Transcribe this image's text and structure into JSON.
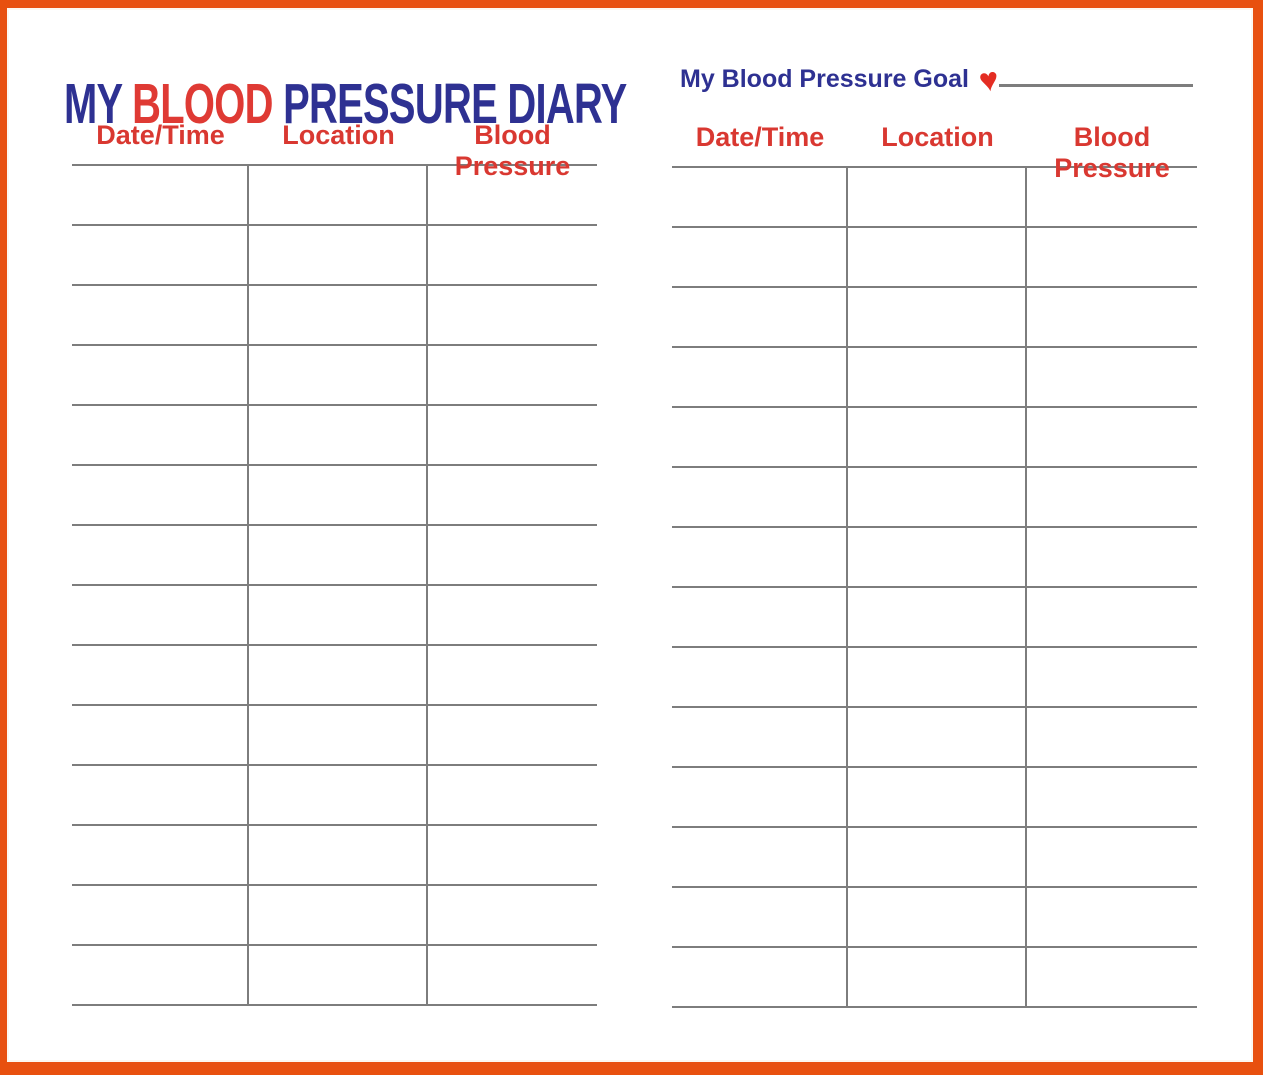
{
  "page": {
    "title_parts": {
      "my": "MY ",
      "blood": "BLOOD",
      "rest": " PRESSURE DIARY"
    },
    "goal_label": "My Blood Pressure Goal",
    "goal_value": "",
    "heart_icon": "♥"
  },
  "colors": {
    "frame_orange": "#E8500F",
    "title_navy": "#2E3192",
    "title_red": "#DF3A34",
    "header_red": "#D93831",
    "rule_gray": "#7D7D7D"
  },
  "tables": [
    {
      "side": "left",
      "headers": [
        "Date/Time",
        "Location",
        "Blood Pressure"
      ],
      "row_count": 14,
      "rows_are_empty": true
    },
    {
      "side": "right",
      "headers": [
        "Date/Time",
        "Location",
        "Blood Pressure"
      ],
      "row_count": 14,
      "rows_are_empty": true
    }
  ]
}
